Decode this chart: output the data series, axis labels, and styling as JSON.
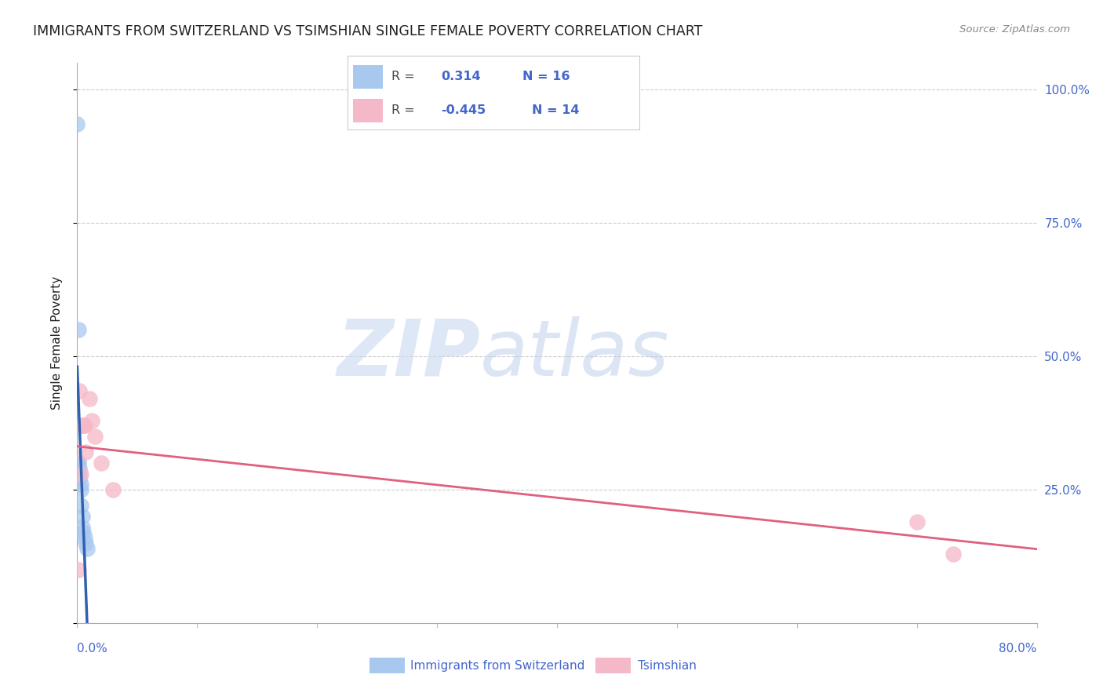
{
  "title": "IMMIGRANTS FROM SWITZERLAND VS TSIMSHIAN SINGLE FEMALE POVERTY CORRELATION CHART",
  "source": "Source: ZipAtlas.com",
  "ylabel": "Single Female Poverty",
  "watermark_zip": "ZIP",
  "watermark_atlas": "atlas",
  "ytick_labels": [
    "",
    "25.0%",
    "50.0%",
    "75.0%",
    "100.0%"
  ],
  "yticks": [
    0.0,
    0.25,
    0.5,
    0.75,
    1.0
  ],
  "xlim": [
    0.0,
    0.8
  ],
  "ylim": [
    0.0,
    1.05
  ],
  "swiss_x": [
    0.0,
    0.001,
    0.001,
    0.002,
    0.002,
    0.002,
    0.003,
    0.003,
    0.003,
    0.004,
    0.004,
    0.005,
    0.006,
    0.007,
    0.008,
    0.001
  ],
  "swiss_y": [
    0.935,
    0.55,
    0.3,
    0.29,
    0.28,
    0.27,
    0.26,
    0.25,
    0.22,
    0.2,
    0.18,
    0.17,
    0.16,
    0.15,
    0.14,
    0.3
  ],
  "tsimshian_x": [
    0.001,
    0.002,
    0.003,
    0.004,
    0.005,
    0.006,
    0.007,
    0.01,
    0.012,
    0.015,
    0.02,
    0.03,
    0.7,
    0.73
  ],
  "tsimshian_y": [
    0.1,
    0.435,
    0.28,
    0.37,
    0.37,
    0.37,
    0.32,
    0.42,
    0.38,
    0.35,
    0.3,
    0.25,
    0.19,
    0.13
  ],
  "swiss_color": "#a8c8f0",
  "tsimshian_color": "#f5b8c8",
  "swiss_solid_color": "#3060b0",
  "swiss_dash_color": "#90b8e8",
  "tsimshian_line_color": "#e06080",
  "bg_color": "#ffffff",
  "grid_color": "#cccccc",
  "title_color": "#222222",
  "axis_label_color": "#4466cc",
  "watermark_color": "#c8d8f0"
}
